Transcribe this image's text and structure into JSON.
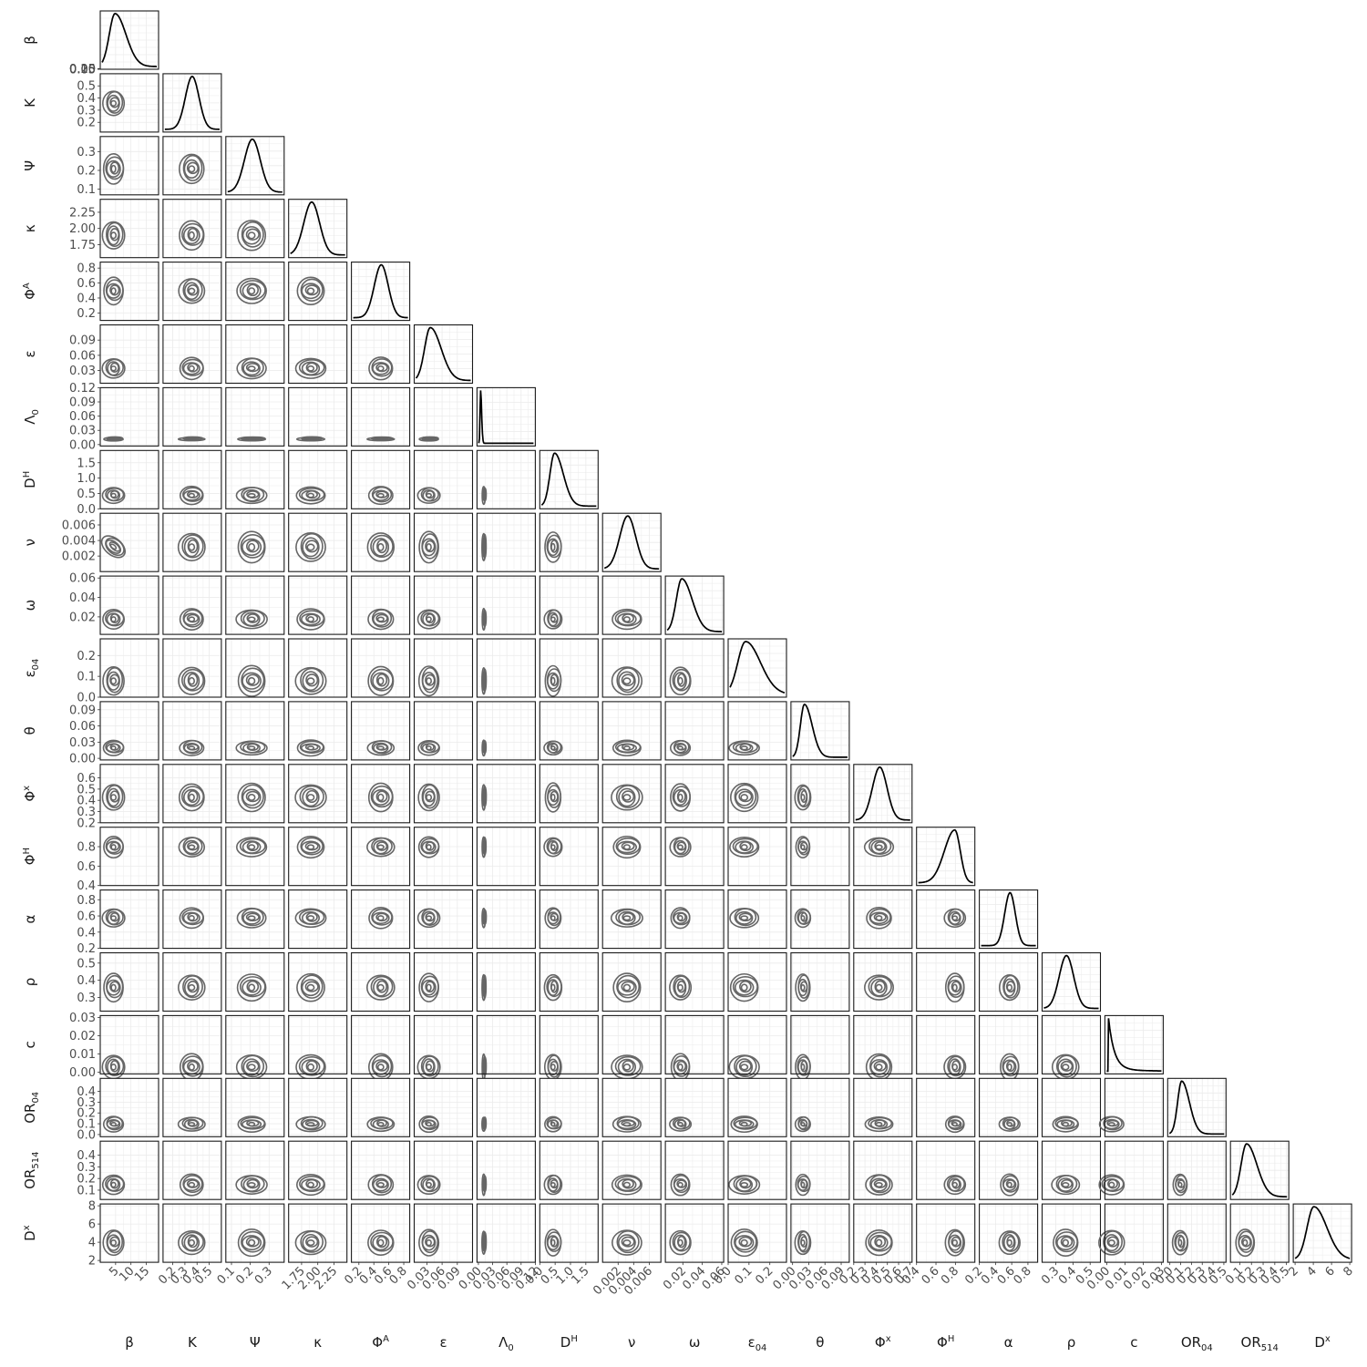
{
  "chart_data": {
    "type": "pairs",
    "description_type": "corner plot: diagonal = marginal density lines, lower triangle = 2D density contours",
    "variables": [
      {
        "name": "β",
        "base": "β",
        "sub": "",
        "sup": "",
        "range": [
          0,
          19
        ],
        "ticks": [
          5,
          10,
          15
        ],
        "tick_labels": [
          "5",
          "10",
          "15"
        ],
        "y_ticks": [
          0.0,
          0.05,
          0.1,
          0.15,
          0.2
        ],
        "y_tick_labels": [
          "0.00",
          "0.05",
          "0.10",
          "0.15",
          "0.20"
        ],
        "mode": 4.5,
        "sd": 2.0,
        "skew": 1
      },
      {
        "name": "K",
        "base": "K",
        "sub": "",
        "sup": "",
        "range": [
          0.12,
          0.6
        ],
        "ticks": [
          0.2,
          0.3,
          0.4,
          0.5
        ],
        "tick_labels": [
          "0.2",
          "0.3",
          "0.4",
          "0.5"
        ],
        "y_ticks": [
          0.2,
          0.3,
          0.4,
          0.5
        ],
        "y_tick_labels": [
          "0.2",
          "0.3",
          "0.4",
          "0.5"
        ],
        "mode": 0.36,
        "sd": 0.06,
        "skew": 0
      },
      {
        "name": "Ψ",
        "base": "Ψ",
        "sub": "",
        "sup": "",
        "range": [
          0.07,
          0.38
        ],
        "ticks": [
          0.1,
          0.2,
          0.3
        ],
        "tick_labels": [
          "0.1",
          "0.2",
          "0.3"
        ],
        "y_ticks": [
          0.1,
          0.2,
          0.3
        ],
        "y_tick_labels": [
          "0.1",
          "0.2",
          "0.3"
        ],
        "mode": 0.21,
        "sd": 0.045,
        "skew": 0
      },
      {
        "name": "κ",
        "base": "κ",
        "sub": "",
        "sup": "",
        "range": [
          1.55,
          2.45
        ],
        "ticks": [
          1.75,
          2.0,
          2.25
        ],
        "tick_labels": [
          "1.75",
          "2.00",
          "2.25"
        ],
        "y_ticks": [
          1.75,
          2.0,
          2.25
        ],
        "y_tick_labels": [
          "1.75",
          "2.00",
          "2.25"
        ],
        "mode": 1.9,
        "sd": 0.13,
        "skew": 0
      },
      {
        "name": "ΦA",
        "base": "Φ",
        "sub": "",
        "sup": "A",
        "range": [
          0.1,
          0.88
        ],
        "ticks": [
          0.2,
          0.4,
          0.6,
          0.8
        ],
        "tick_labels": [
          "0.2",
          "0.4",
          "0.6",
          "0.8"
        ],
        "y_ticks": [
          0.2,
          0.4,
          0.6,
          0.8
        ],
        "y_tick_labels": [
          "0.2",
          "0.4",
          "0.6",
          "0.8"
        ],
        "mode": 0.5,
        "sd": 0.1,
        "skew": 0
      },
      {
        "name": "ε",
        "base": "ε",
        "sub": "",
        "sup": "",
        "range": [
          0.005,
          0.12
        ],
        "ticks": [
          0.03,
          0.06,
          0.09
        ],
        "tick_labels": [
          "0.03",
          "0.06",
          "0.09"
        ],
        "y_ticks": [
          0.03,
          0.06,
          0.09
        ],
        "y_tick_labels": [
          "0.03",
          "0.06",
          "0.09"
        ],
        "mode": 0.035,
        "sd": 0.012,
        "skew": 1
      },
      {
        "name": "Λ0",
        "base": "Λ",
        "sub": "0",
        "sup": "",
        "range": [
          -0.003,
          0.12
        ],
        "ticks": [
          0.0,
          0.03,
          0.06,
          0.09,
          0.12
        ],
        "tick_labels": [
          "0.00",
          "0.03",
          "0.06",
          "0.09",
          "0.12"
        ],
        "y_ticks": [
          0.0,
          0.03,
          0.06,
          0.09,
          0.12
        ],
        "y_tick_labels": [
          "0.00",
          "0.03",
          "0.06",
          "0.09",
          "0.12"
        ],
        "mode": 0.001,
        "sd": 0.0012,
        "skew": 1
      },
      {
        "name": "DH",
        "base": "D",
        "sub": "",
        "sup": "H",
        "range": [
          0,
          1.9
        ],
        "ticks": [
          0.0,
          0.5,
          1.0,
          1.5
        ],
        "tick_labels": [
          "0.0",
          "0.5",
          "1.0",
          "1.5"
        ],
        "y_ticks": [
          0.0,
          0.5,
          1.0,
          1.5
        ],
        "y_tick_labels": [
          "0.0",
          "0.5",
          "1.0",
          "1.5"
        ],
        "mode": 0.45,
        "sd": 0.16,
        "skew": 1
      },
      {
        "name": "ν",
        "base": "ν",
        "sub": "",
        "sup": "",
        "range": [
          0.0,
          0.0075
        ],
        "ticks": [
          0.002,
          0.004,
          0.006
        ],
        "tick_labels": [
          "0.002",
          "0.004",
          "0.006"
        ],
        "y_ticks": [
          0.002,
          0.004,
          0.006
        ],
        "y_tick_labels": [
          "0.002",
          "0.004",
          "0.006"
        ],
        "mode": 0.0032,
        "sd": 0.0011,
        "skew": 0
      },
      {
        "name": "ω",
        "base": "ω",
        "sub": "",
        "sup": "",
        "range": [
          0.002,
          0.062
        ],
        "ticks": [
          0.02,
          0.04,
          0.06
        ],
        "tick_labels": [
          "0.02",
          "0.04",
          "0.06"
        ],
        "y_ticks": [
          0.02,
          0.04,
          0.06
        ],
        "y_tick_labels": [
          "0.02",
          "0.04",
          "0.06"
        ],
        "mode": 0.018,
        "sd": 0.006,
        "skew": 1
      },
      {
        "name": "ε04",
        "base": "ε",
        "sub": "04",
        "sup": "",
        "range": [
          0,
          0.28
        ],
        "ticks": [
          0.0,
          0.1,
          0.2
        ],
        "tick_labels": [
          "0.0",
          "0.1",
          "0.2"
        ],
        "y_ticks": [
          0.0,
          0.1,
          0.2
        ],
        "y_tick_labels": [
          "0.0",
          "0.1",
          "0.2"
        ],
        "mode": 0.08,
        "sd": 0.04,
        "skew": 1
      },
      {
        "name": "θ",
        "base": "θ",
        "sub": "",
        "sup": "",
        "range": [
          -0.003,
          0.105
        ],
        "ticks": [
          0.0,
          0.03,
          0.06,
          0.09
        ],
        "tick_labels": [
          "0.00",
          "0.03",
          "0.06",
          "0.09"
        ],
        "y_ticks": [
          0.0,
          0.03,
          0.06,
          0.09
        ],
        "y_tick_labels": [
          "0.00",
          "0.03",
          "0.06",
          "0.09"
        ],
        "mode": 0.02,
        "sd": 0.008,
        "skew": 1
      },
      {
        "name": "Φx",
        "base": "Φ",
        "sub": "",
        "sup": "x",
        "range": [
          0.2,
          0.72
        ],
        "ticks": [
          0.2,
          0.3,
          0.4,
          0.5,
          0.6,
          0.7
        ],
        "tick_labels": [
          "0.2",
          "0.3",
          "0.4",
          "0.5",
          "0.6",
          "0.7"
        ],
        "y_ticks": [
          0.2,
          0.3,
          0.4,
          0.5,
          0.6
        ],
        "y_tick_labels": [
          "0.2",
          "0.3",
          "0.4",
          "0.5",
          "0.6"
        ],
        "mode": 0.43,
        "sd": 0.07,
        "skew": 0
      },
      {
        "name": "ΦH",
        "base": "Φ",
        "sub": "",
        "sup": "H",
        "range": [
          0.4,
          1.0
        ],
        "ticks": [
          0.4,
          0.6,
          0.8
        ],
        "tick_labels": [
          "0.4",
          "0.6",
          "0.8"
        ],
        "y_ticks": [
          0.4,
          0.6,
          0.8
        ],
        "y_tick_labels": [
          "0.4",
          "0.6",
          "0.8"
        ],
        "mode": 0.8,
        "sd": 0.06,
        "skew": -1
      },
      {
        "name": "α",
        "base": "α",
        "sub": "",
        "sup": "",
        "range": [
          0.2,
          0.92
        ],
        "ticks": [
          0.2,
          0.4,
          0.6,
          0.8
        ],
        "tick_labels": [
          "0.2",
          "0.4",
          "0.6",
          "0.8"
        ],
        "y_ticks": [
          0.2,
          0.4,
          0.6,
          0.8
        ],
        "y_tick_labels": [
          "0.2",
          "0.4",
          "0.6",
          "0.8"
        ],
        "mode": 0.58,
        "sd": 0.07,
        "skew": 0
      },
      {
        "name": "ρ",
        "base": "ρ",
        "sub": "",
        "sup": "",
        "range": [
          0.22,
          0.56
        ],
        "ticks": [
          0.3,
          0.4,
          0.5
        ],
        "tick_labels": [
          "0.3",
          "0.4",
          "0.5"
        ],
        "y_ticks": [
          0.3,
          0.4,
          0.5
        ],
        "y_tick_labels": [
          "0.3",
          "0.4",
          "0.5"
        ],
        "mode": 0.36,
        "sd": 0.045,
        "skew": 0
      },
      {
        "name": "c",
        "base": "c",
        "sub": "",
        "sup": "",
        "range": [
          -0.001,
          0.031
        ],
        "ticks": [
          0.0,
          0.01,
          0.02,
          0.03
        ],
        "tick_labels": [
          "0.00",
          "0.01",
          "0.02",
          "0.03"
        ],
        "y_ticks": [
          0.0,
          0.01,
          0.02,
          0.03
        ],
        "y_tick_labels": [
          "0.00",
          "0.01",
          "0.02",
          "0.03"
        ],
        "mode": 0.0,
        "sd": 0.004,
        "skew": 2
      },
      {
        "name": "OR04",
        "base": "OR",
        "sub": "04",
        "sup": "",
        "range": [
          -0.02,
          0.52
        ],
        "ticks": [
          0.0,
          0.1,
          0.2,
          0.3,
          0.4,
          0.5
        ],
        "tick_labels": [
          "0.0",
          "0.1",
          "0.2",
          "0.3",
          "0.4",
          "0.5"
        ],
        "y_ticks": [
          0.0,
          0.1,
          0.2,
          0.3,
          0.4
        ],
        "y_tick_labels": [
          "0.0",
          "0.1",
          "0.2",
          "0.3",
          "0.4"
        ],
        "mode": 0.1,
        "sd": 0.04,
        "skew": 1
      },
      {
        "name": "OR514",
        "base": "OR",
        "sub": "514",
        "sup": "",
        "range": [
          0.02,
          0.52
        ],
        "ticks": [
          0.1,
          0.2,
          0.3,
          0.4,
          0.5
        ],
        "tick_labels": [
          "0.1",
          "0.2",
          "0.3",
          "0.4",
          "0.5"
        ],
        "y_ticks": [
          0.1,
          0.2,
          0.3,
          0.4
        ],
        "y_tick_labels": [
          "0.1",
          "0.2",
          "0.3",
          "0.4"
        ],
        "mode": 0.15,
        "sd": 0.05,
        "skew": 1
      },
      {
        "name": "Dx",
        "base": "D",
        "sub": "",
        "sup": "x",
        "range": [
          1.8,
          8.2
        ],
        "ticks": [
          2,
          4,
          6,
          8
        ],
        "tick_labels": [
          "2",
          "4",
          "6",
          "8"
        ],
        "y_ticks": [
          2,
          4,
          6,
          8
        ],
        "y_tick_labels": [
          "2",
          "4",
          "6",
          "8"
        ],
        "mode": 4.0,
        "sd": 0.8,
        "skew": 1
      }
    ],
    "correlations": [
      {
        "pair": [
          "ν",
          "β"
        ],
        "rho": -0.85
      }
    ],
    "line_color": "#000000",
    "contour_color": "#666666",
    "grid": true
  }
}
